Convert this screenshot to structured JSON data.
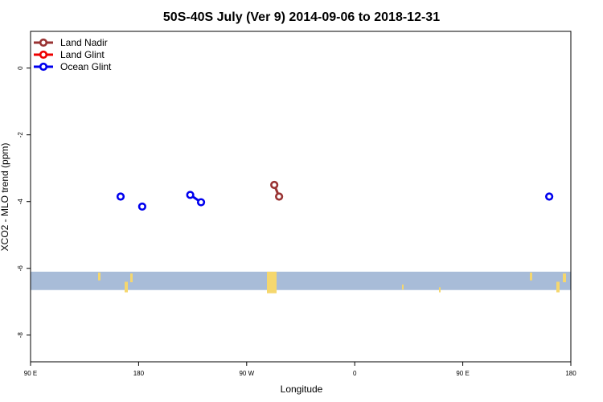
{
  "chart_data": {
    "type": "scatter",
    "title": "50S-40S July (Ver 9)   2014-09-06 to 2018-12-31",
    "xlabel": "Longitude",
    "ylabel": "XCO2 - MLO trend (ppm)",
    "xlim": [
      90,
      450
    ],
    "ylim": [
      -8.8,
      1.1
    ],
    "x_ticks": [
      {
        "value": 90,
        "label": "90 E"
      },
      {
        "value": 180,
        "label": "180"
      },
      {
        "value": 270,
        "label": "90 W"
      },
      {
        "value": 360,
        "label": "0"
      },
      {
        "value": 450,
        "label": "90 E"
      },
      {
        "value": 540,
        "label": "180"
      }
    ],
    "y_ticks": [
      {
        "value": 0,
        "label": "0"
      },
      {
        "value": -2,
        "label": "-2"
      },
      {
        "value": -4,
        "label": "-4"
      },
      {
        "value": -6,
        "label": "-6"
      },
      {
        "value": -8,
        "label": "-8"
      }
    ],
    "x_axis_span": [
      90,
      540
    ],
    "legend_position": "top-left",
    "grid": false,
    "map_strip": {
      "y_range": [
        -6.65,
        -6.1
      ],
      "ocean_color": "#a8bcd8",
      "land_color": "#f5d76e"
    },
    "series": [
      {
        "name": "Land Nadir",
        "color": "#993333",
        "segments": [
          [
            {
              "x": 293,
              "y": -3.5
            },
            {
              "x": 297,
              "y": -3.85
            }
          ]
        ]
      },
      {
        "name": "Land Glint",
        "color": "#ee0000",
        "segments": []
      },
      {
        "name": "Ocean Glint",
        "color": "#0000ee",
        "segments": [
          [
            {
              "x": 165,
              "y": -3.85
            }
          ],
          [
            {
              "x": 183,
              "y": -4.15
            }
          ],
          [
            {
              "x": 223,
              "y": -3.8
            },
            {
              "x": 232,
              "y": -4.02
            }
          ],
          [
            {
              "x": 522,
              "y": -3.85
            }
          ]
        ]
      }
    ]
  }
}
